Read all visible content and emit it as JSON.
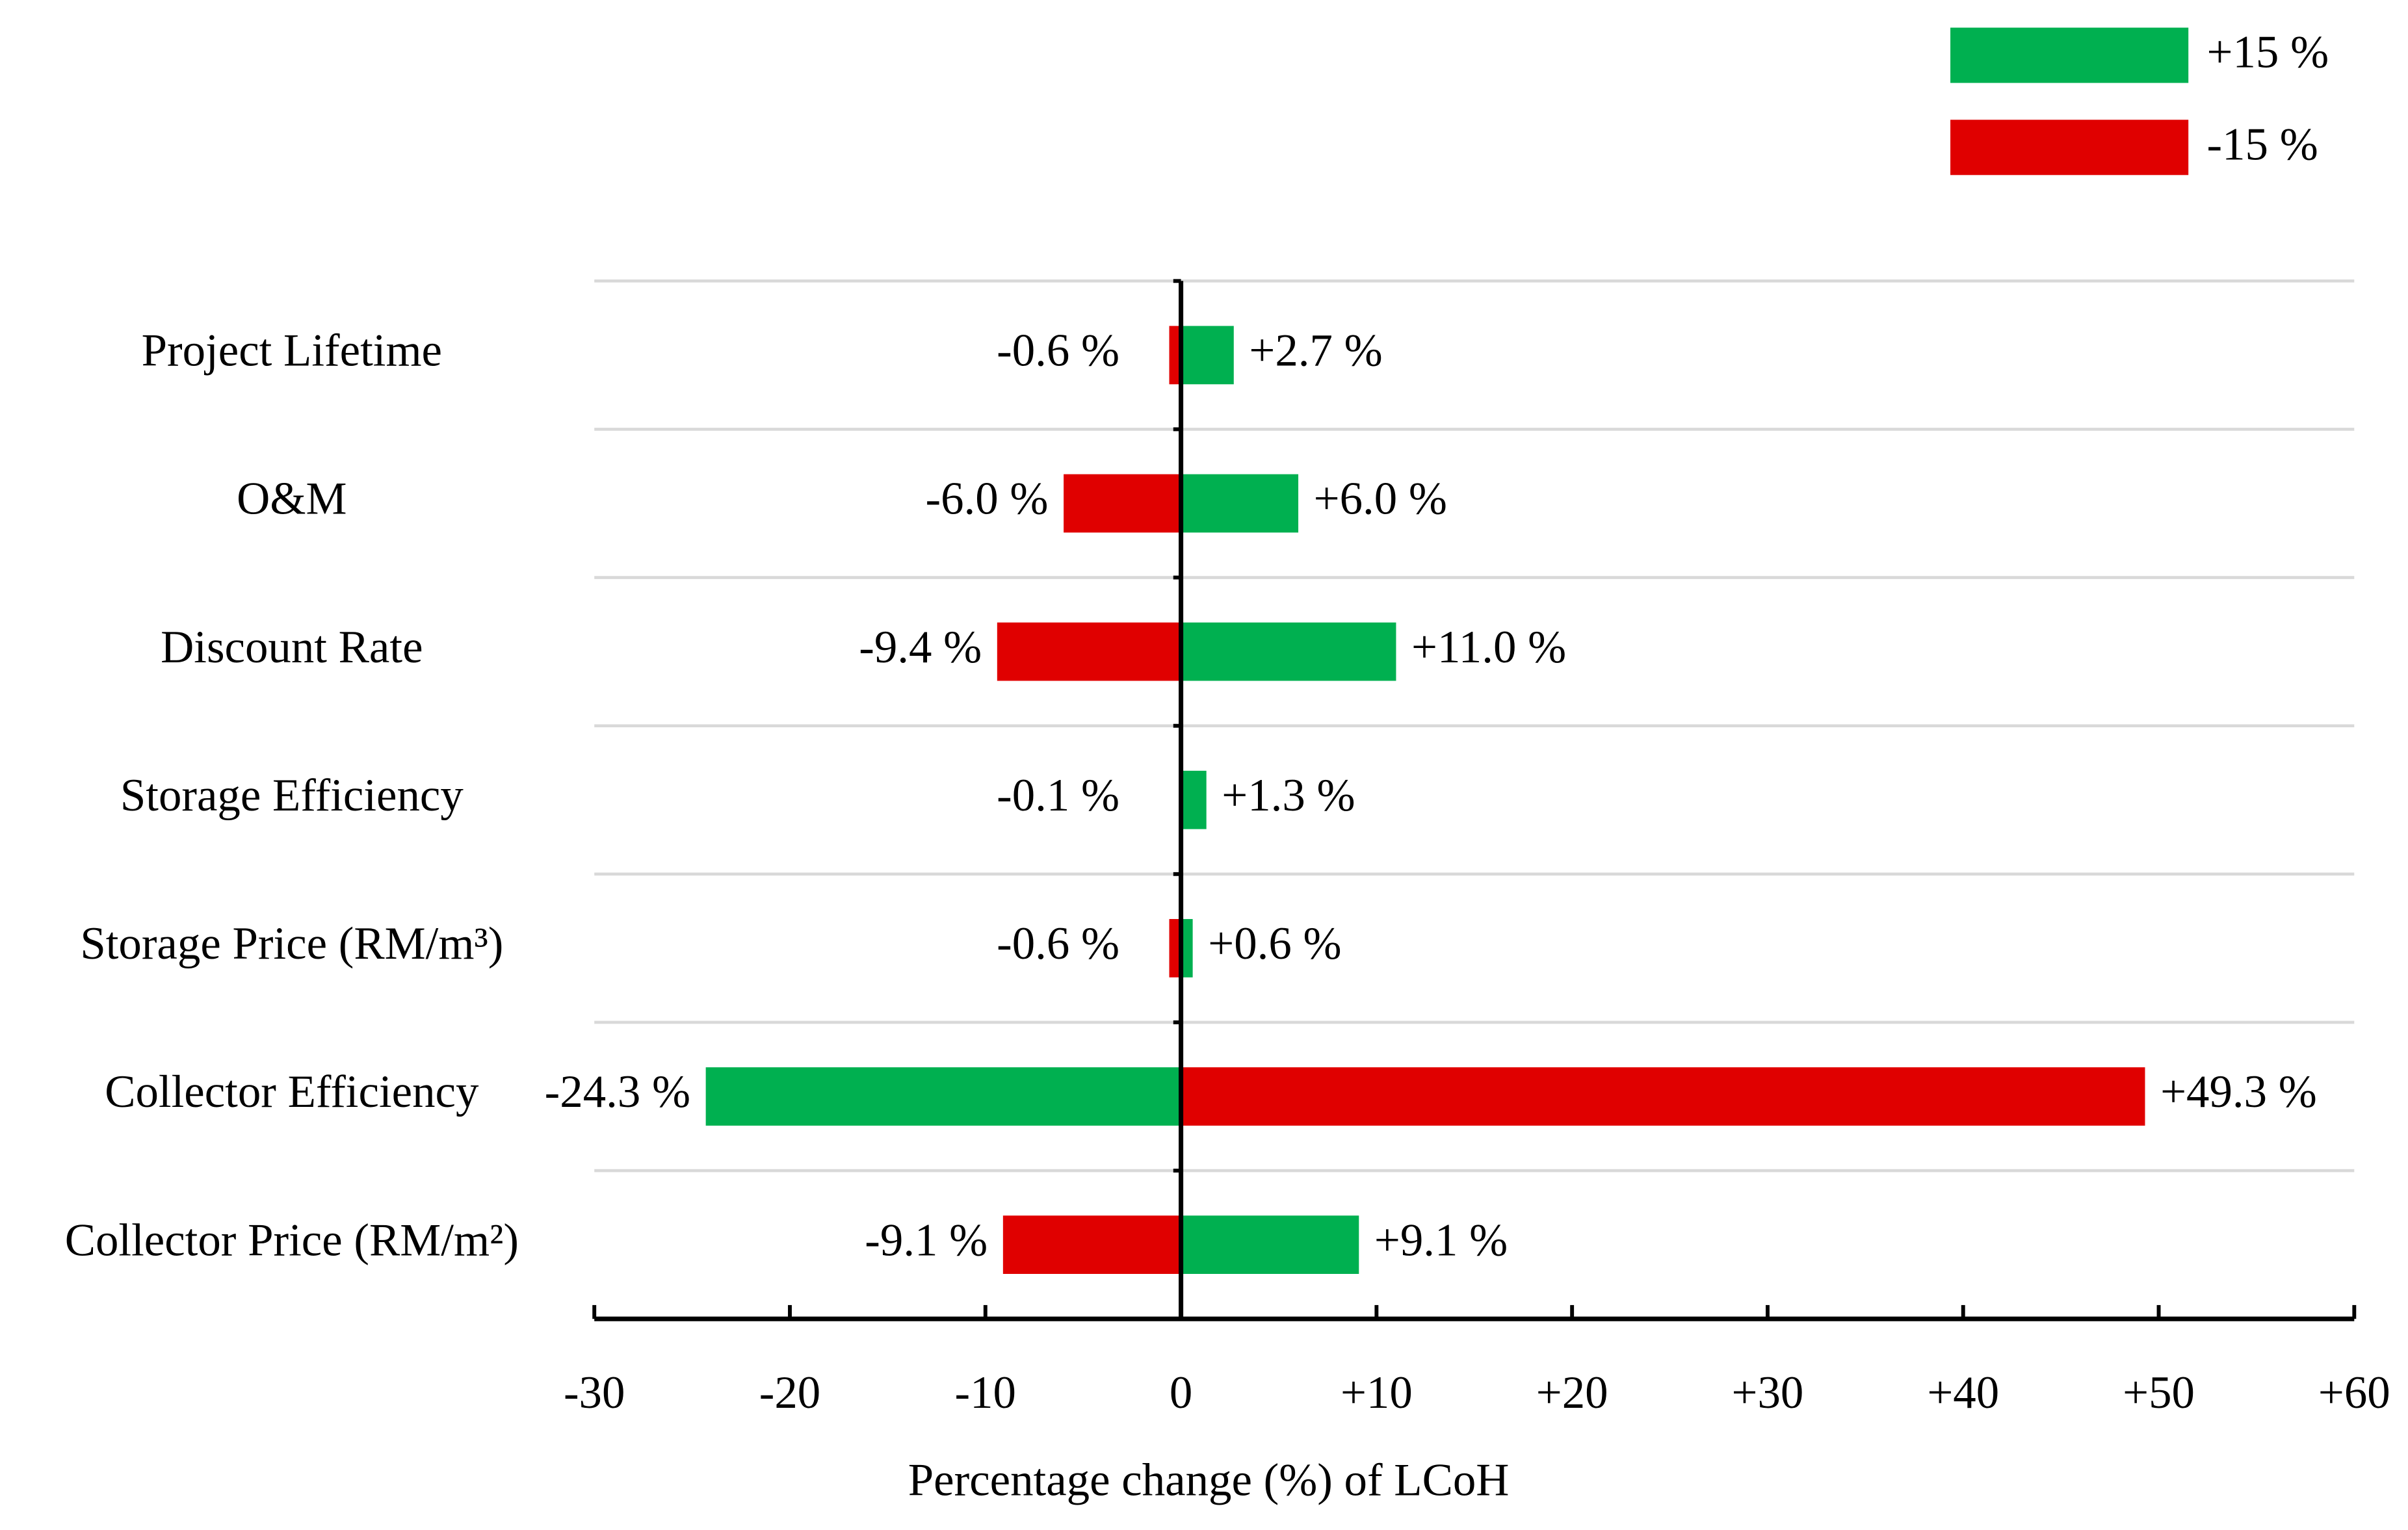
{
  "chart_data": {
    "type": "tornado",
    "x_label": "Percentage change (%) of LCoH",
    "categories": [
      "Project Lifetime",
      "O&M",
      "Discount Rate",
      "Storage Efficiency",
      "Storage Price (RM/m³)",
      "Collector Efficiency",
      "Collector Price (RM/m²)"
    ],
    "series": [
      {
        "name": "+15 %",
        "color": "#00b050",
        "values": [
          2.7,
          6.0,
          11.0,
          1.3,
          0.6,
          -24.3,
          9.1
        ],
        "value_labels": [
          "+2.7 %",
          "+6.0 %",
          "+11.0 %",
          "+1.3 %",
          "+0.6 %",
          "-24.3 %",
          "+9.1 %"
        ]
      },
      {
        "name": "-15 %",
        "color": "#e00000",
        "values": [
          -0.6,
          -6.0,
          -9.4,
          -0.1,
          -0.6,
          49.3,
          -9.1
        ],
        "value_labels": [
          "-0.6 %",
          "-6.0 %",
          "-9.4 %",
          "-0.1 %",
          "-0.6 %",
          "+49.3 %",
          "-9.1 %"
        ]
      }
    ],
    "xlim": [
      -30,
      60
    ],
    "xticks": [
      -30,
      -20,
      -10,
      0,
      {
        "value": 10,
        "label": "+10"
      },
      {
        "value": 20,
        "label": "+20"
      },
      {
        "value": 30,
        "label": "+30"
      },
      {
        "value": 40,
        "label": "+40"
      },
      {
        "value": 50,
        "label": "+50"
      },
      {
        "value": 60,
        "label": "+60"
      }
    ],
    "legend": "top-right"
  }
}
